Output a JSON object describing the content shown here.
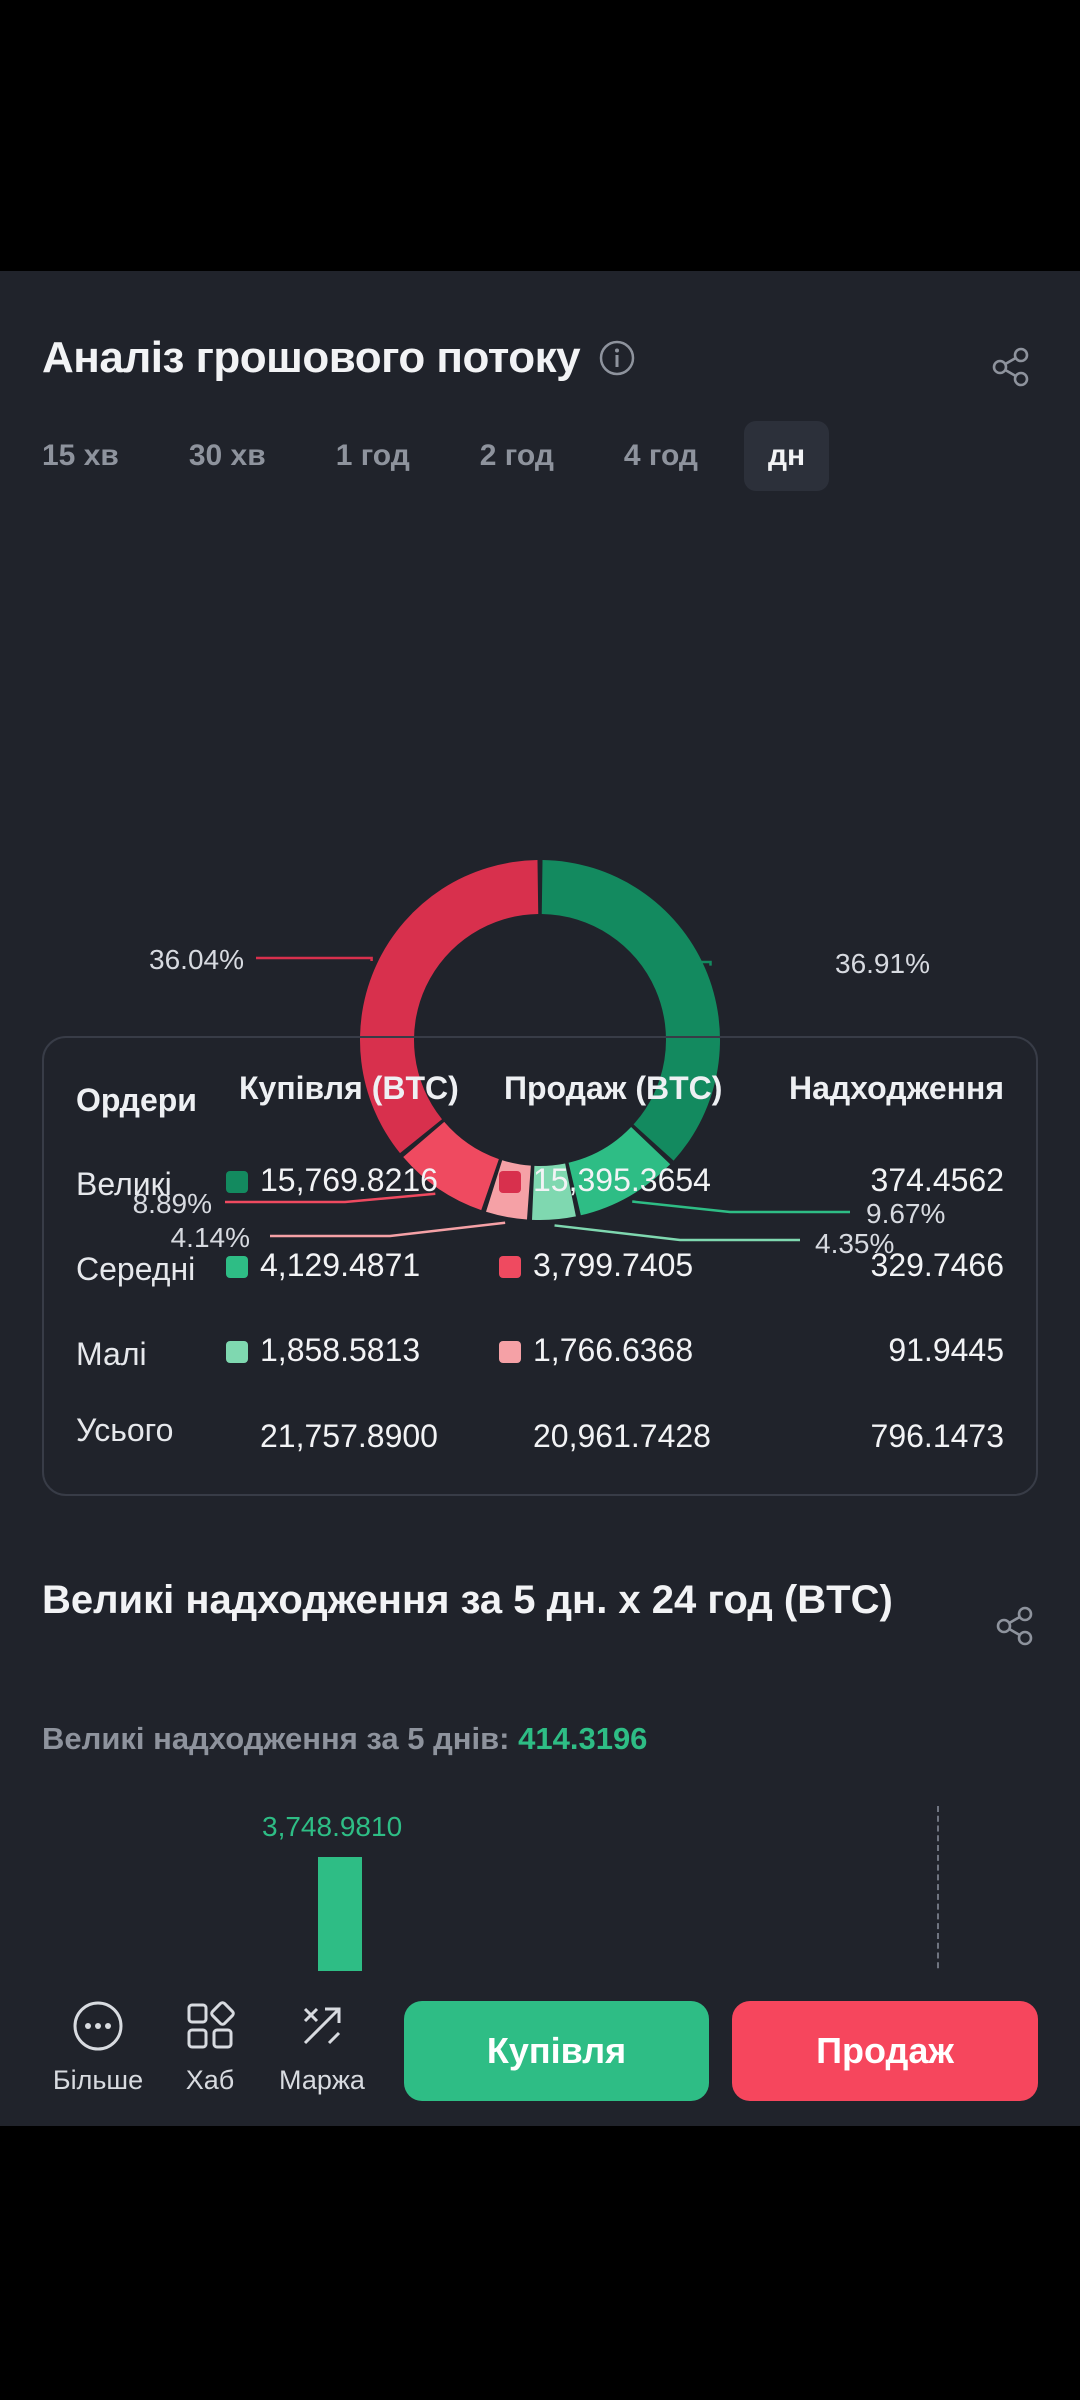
{
  "header": {
    "title": "Аналіз грошового потоку"
  },
  "tabs": [
    "15 хв",
    "30 хв",
    "1 год",
    "2 год",
    "4 год",
    "дн"
  ],
  "active_tab": "дн",
  "colors": {
    "big_buy": "#138a5f",
    "mid_buy": "#2ebd85",
    "small_buy": "#7fd8b0",
    "big_sell": "#d8304d",
    "mid_sell": "#ef4a60",
    "small_sell": "#f5a1a6",
    "accent_green": "#2ebd85",
    "accent_red": "#f6465d"
  },
  "chart_data": {
    "type": "pie",
    "labels": [
      "36.91%",
      "9.67%",
      "4.35%",
      "4.14%",
      "8.89%",
      "36.04%"
    ],
    "values": [
      36.91,
      9.67,
      4.35,
      4.14,
      8.89,
      36.04
    ]
  },
  "table": {
    "headers": [
      "Ордери",
      "Купівля (BTC)",
      "Продаж (BTC)",
      "Надходження"
    ],
    "rows": [
      {
        "label": "Великі",
        "buy": "15,769.8216",
        "sell": "15,395.3654",
        "inflow": "374.4562"
      },
      {
        "label": "Середні",
        "buy": "4,129.4871",
        "sell": "3,799.7405",
        "inflow": "329.7466"
      },
      {
        "label": "Малі",
        "buy": "1,858.5813",
        "sell": "1,766.6368",
        "inflow": "91.9445"
      },
      {
        "label": "Усього",
        "buy": "21,757.8900",
        "sell": "20,961.7428",
        "inflow": "796.1473"
      }
    ]
  },
  "section2": {
    "title": "Великі надходження за 5 дн. x 24 год (BTC)",
    "subtitle_label": "Великі надходження за 5 днів:",
    "subtitle_value": "414.3196",
    "bar_value_label": "3,748.9810"
  },
  "bottom_nav": {
    "more": "Більше",
    "hub": "Хаб",
    "margin": "Маржа",
    "buy": "Купівля",
    "sell": "Продаж"
  }
}
